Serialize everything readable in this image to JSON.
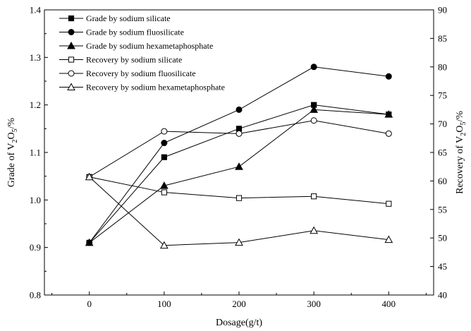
{
  "chart_data": {
    "type": "line",
    "x_axis": {
      "label": "Dosage(g/t)",
      "ticks": [
        0,
        100,
        200,
        300,
        400
      ],
      "range": [
        -60,
        460
      ]
    },
    "y_left": {
      "label_parts": [
        "Grade of V",
        "2",
        "O",
        "5",
        "/%"
      ],
      "range": [
        0.8,
        1.4
      ],
      "ticks": [
        "0.8",
        "0.9",
        "1.0",
        "1.1",
        "1.2",
        "1.3",
        "1.4"
      ]
    },
    "y_right": {
      "label_parts": [
        "Recovery of V",
        "2",
        "O",
        "5",
        "/%"
      ],
      "range": [
        40,
        90
      ],
      "ticks": [
        "40",
        "45",
        "50",
        "55",
        "60",
        "65",
        "70",
        "75",
        "80",
        "85",
        "90"
      ]
    },
    "x": [
      0,
      100,
      200,
      300,
      400
    ],
    "series": [
      {
        "name": "Grade by sodium silicate",
        "axis": "left",
        "marker": "square",
        "filled": true,
        "values": [
          0.91,
          1.09,
          1.15,
          1.2,
          1.18
        ]
      },
      {
        "name": "Grade by sodium fluosilicate",
        "axis": "left",
        "marker": "circle",
        "filled": true,
        "values": [
          0.91,
          1.12,
          1.19,
          1.28,
          1.26
        ]
      },
      {
        "name": "Grade by sodium hexametaphosphate",
        "axis": "left",
        "marker": "triangle",
        "filled": true,
        "values": [
          0.91,
          1.03,
          1.07,
          1.19,
          1.18
        ]
      },
      {
        "name": "Recovery by sodium silicate",
        "axis": "right",
        "marker": "square",
        "filled": false,
        "values": [
          60.7,
          58.0,
          57.0,
          57.3,
          56.0
        ]
      },
      {
        "name": "Recovery by sodium fluosilicate",
        "axis": "right",
        "marker": "circle",
        "filled": false,
        "values": [
          60.7,
          68.7,
          68.3,
          70.6,
          68.3
        ]
      },
      {
        "name": "Recovery by sodium hexametaphosphate",
        "axis": "right",
        "marker": "triangle",
        "filled": false,
        "values": [
          60.7,
          48.7,
          49.2,
          51.3,
          49.7
        ]
      }
    ],
    "legend_position": "top-left",
    "grid": false
  }
}
